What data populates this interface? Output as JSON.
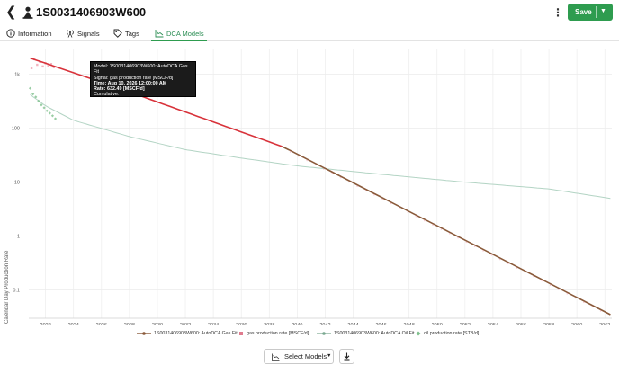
{
  "header": {
    "title": "1S0031406903W600",
    "save_label": "Save"
  },
  "tabs": [
    {
      "label": "Information",
      "icon": "info-icon",
      "active": false
    },
    {
      "label": "Signals",
      "icon": "signal-icon",
      "active": false
    },
    {
      "label": "Tags",
      "icon": "tag-icon",
      "active": false
    },
    {
      "label": "DCA Models",
      "icon": "chart-icon",
      "active": true
    }
  ],
  "colors": {
    "accent": "#2e9c4f",
    "gas_fit": "#d8323a",
    "gas_fit_forecast": "#8a5a3a",
    "gas_points": "#f0a6b4",
    "oil_fit": "#b3d4c4",
    "oil_points": "#7fc08d"
  },
  "tooltip": {
    "model": "Model: 1S0031406903W600: AutoDCA Gas Fit",
    "signal": "Signal: gas production rate [MSCF/d]",
    "time": "Time: Aug 10, 2026 12:00:00 AM",
    "rate": "Rate: 632.49 [MSCF/d]",
    "cumulative": "Cumulative:"
  },
  "chart_data": {
    "type": "line",
    "ylabel": "Calendar Day Production Rate",
    "yscale": "log",
    "ylim": [
      0.03,
      3000
    ],
    "xlim": [
      2020.8,
      2062.5
    ],
    "x_ticks": [
      "2022",
      "2024",
      "2026",
      "2028",
      "2030",
      "2032",
      "2034",
      "2036",
      "2038",
      "2040",
      "2042",
      "2044",
      "2046",
      "2048",
      "2050",
      "2052",
      "2054",
      "2056",
      "2058",
      "2060",
      "2062"
    ],
    "y_ticks": [
      "1k",
      "100",
      "10",
      "1",
      "0.1"
    ],
    "grid": true,
    "legend_position": "bottom",
    "series": [
      {
        "name": "1S0031406903W600: AutoDCA Gas Fit",
        "kind": "line",
        "x": [
          2020.9,
          2026.6,
          2039.0,
          2062.4
        ],
        "y": [
          2000,
          632.49,
          45,
          0.035
        ]
      },
      {
        "name": "gas production rate [MSCF/d]",
        "kind": "points",
        "x": [
          2021.0,
          2021.2,
          2021.4,
          2021.6,
          2021.8,
          2022.0,
          2022.2,
          2022.4,
          2022.6
        ],
        "y": [
          1300,
          1900,
          1500,
          1700,
          1400,
          1600,
          1450,
          1550,
          1350
        ]
      },
      {
        "name": "1S0031406903W600: AutoDCA Oil Fit",
        "kind": "line",
        "x": [
          2020.9,
          2022.0,
          2024.0,
          2028.0,
          2032.0,
          2036.0,
          2040.0,
          2046.0,
          2052.0,
          2058.0,
          2062.4
        ],
        "y": [
          420,
          260,
          140,
          70,
          40,
          28,
          20,
          14,
          10,
          7.5,
          5
        ]
      },
      {
        "name": "oil production rate [STB/d]",
        "kind": "points",
        "x": [
          2020.9,
          2021.1,
          2021.3,
          2021.5,
          2021.7,
          2021.9,
          2022.1,
          2022.3,
          2022.5,
          2022.7
        ],
        "y": [
          550,
          430,
          380,
          320,
          270,
          240,
          210,
          190,
          170,
          150
        ]
      }
    ]
  },
  "bottom_bar": {
    "select_models_label": "Select Models"
  }
}
